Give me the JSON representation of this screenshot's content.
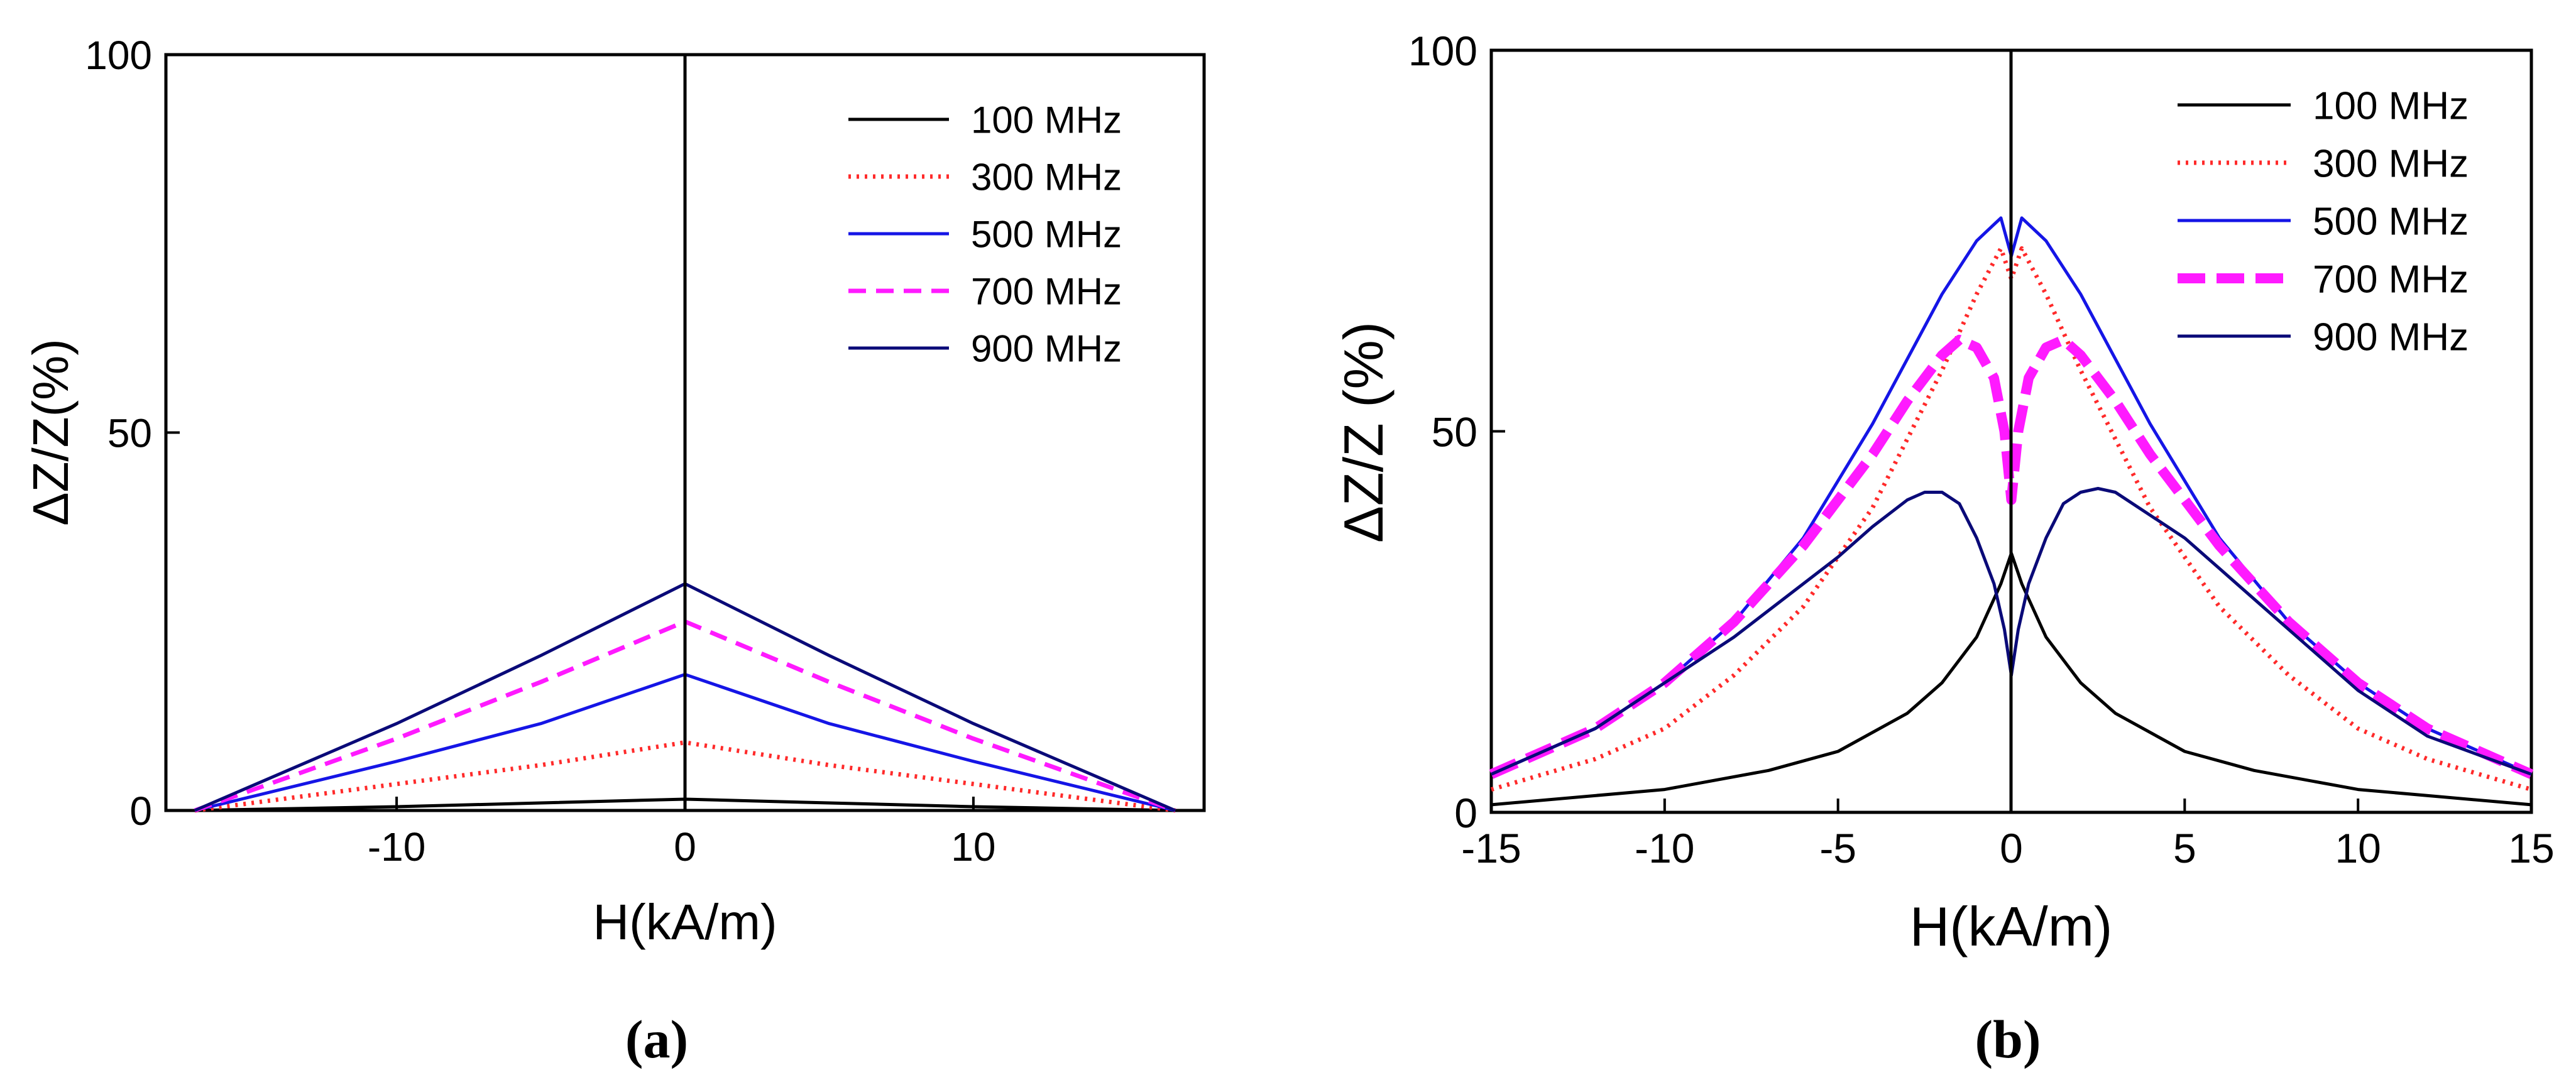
{
  "colors": {
    "100 MHz": "#000000",
    "300 MHz": "#ff2a2a",
    "500 MHz": "#1515e6",
    "700 MHz": "#ff1aff",
    "900 MHz": "#0a0a78"
  },
  "chart_data": [
    {
      "type": "line",
      "caption": "(a)",
      "title": "",
      "xlabel": "H(kA/m)",
      "ylabel": "ΔZ/Z(%)",
      "xlim": [
        -18,
        18
      ],
      "ylim": [
        0,
        100
      ],
      "xticks": [
        -10,
        0,
        10
      ],
      "yticks": [
        0,
        50,
        100
      ],
      "legend_position": "top-right",
      "grid": false,
      "series": [
        {
          "name": "100 MHz",
          "style": "solid",
          "x": [
            -17,
            -10,
            -5,
            0,
            5,
            10,
            17
          ],
          "y": [
            0,
            0.5,
            1,
            1.5,
            1,
            0.5,
            0
          ]
        },
        {
          "name": "300 MHz",
          "style": "dotted",
          "x": [
            -17,
            -10,
            -5,
            0,
            5,
            10,
            17
          ],
          "y": [
            0,
            3.5,
            6,
            9,
            6,
            3.5,
            0
          ]
        },
        {
          "name": "500 MHz",
          "style": "solid",
          "x": [
            -17,
            -10,
            -5,
            0,
            5,
            10,
            17
          ],
          "y": [
            0,
            6.5,
            11.5,
            18,
            11.5,
            6.5,
            0
          ]
        },
        {
          "name": "700 MHz",
          "style": "dashed",
          "x": [
            -17,
            -10,
            -5,
            0,
            5,
            10,
            17
          ],
          "y": [
            0,
            9.5,
            17,
            25,
            17,
            9.5,
            0
          ]
        },
        {
          "name": "900 MHz",
          "style": "solid",
          "x": [
            -17,
            -10,
            -5,
            0,
            5,
            10,
            17
          ],
          "y": [
            0,
            11.5,
            20.5,
            30,
            20.5,
            11.5,
            0
          ]
        }
      ]
    },
    {
      "type": "line",
      "caption": "(b)",
      "title": "",
      "xlabel": "H(kA/m)",
      "ylabel": "ΔZ/Z (%)",
      "xlim": [
        -15,
        15
      ],
      "ylim": [
        0,
        100
      ],
      "xticks": [
        -15,
        -10,
        -5,
        0,
        5,
        10,
        15
      ],
      "yticks": [
        0,
        50,
        100
      ],
      "legend_position": "top-right",
      "grid": false,
      "series": [
        {
          "name": "100 MHz",
          "style": "solid",
          "x": [
            -15,
            -10,
            -7,
            -5,
            -3,
            -2,
            -1,
            -0.3,
            0,
            0.3,
            1,
            2,
            3,
            5,
            7,
            10,
            15
          ],
          "y": [
            1,
            3,
            5.5,
            8,
            13,
            17,
            23,
            30,
            34,
            30,
            23,
            17,
            13,
            8,
            5.5,
            3,
            1
          ]
        },
        {
          "name": "300 MHz",
          "style": "dotted",
          "x": [
            -15,
            -12,
            -10,
            -8,
            -6,
            -4,
            -2,
            -1,
            -0.3,
            0,
            0.3,
            1,
            2,
            4,
            6,
            8,
            10,
            12,
            15
          ],
          "y": [
            3,
            7,
            11,
            18,
            27,
            40,
            58,
            68,
            74,
            70,
            74,
            68,
            58,
            40,
            27,
            18,
            11,
            7,
            3
          ]
        },
        {
          "name": "500 MHz",
          "style": "solid",
          "x": [
            -15,
            -12,
            -10,
            -8,
            -6,
            -4,
            -2,
            -1,
            -0.3,
            0,
            0.3,
            1,
            2,
            4,
            6,
            8,
            10,
            12,
            15
          ],
          "y": [
            5,
            11,
            17,
            25,
            36,
            51,
            68,
            75,
            78,
            73,
            78,
            75,
            68,
            51,
            36,
            25,
            17,
            11,
            5
          ]
        },
        {
          "name": "700 MHz",
          "style": "dashed",
          "x": [
            -15,
            -12,
            -10,
            -8,
            -6,
            -4,
            -3,
            -2,
            -1.5,
            -1,
            -0.5,
            -0.2,
            0,
            0.2,
            0.5,
            1,
            1.5,
            2,
            3,
            4,
            6,
            8,
            10,
            12,
            15
          ],
          "y": [
            5,
            11,
            17,
            25,
            35,
            47,
            54,
            60,
            62,
            61,
            57,
            50,
            41,
            50,
            57,
            61,
            62,
            60,
            54,
            47,
            35,
            25,
            17,
            11,
            5
          ]
        },
        {
          "name": "900 MHz",
          "style": "solid",
          "x": [
            -15,
            -12,
            -10,
            -8,
            -6,
            -5,
            -4,
            -3,
            -2.5,
            -2,
            -1.5,
            -1,
            -0.5,
            -0.2,
            0,
            0.2,
            0.5,
            1,
            1.5,
            2,
            2.5,
            3,
            4,
            5,
            6,
            8,
            10,
            12,
            15
          ],
          "y": [
            5,
            11,
            17,
            23,
            30,
            33.5,
            37.5,
            41,
            42,
            42,
            40.5,
            36,
            30,
            24,
            18,
            24,
            30,
            36,
            40.5,
            42,
            42.5,
            42,
            39,
            36,
            32,
            24,
            16,
            10,
            5
          ]
        }
      ]
    }
  ]
}
